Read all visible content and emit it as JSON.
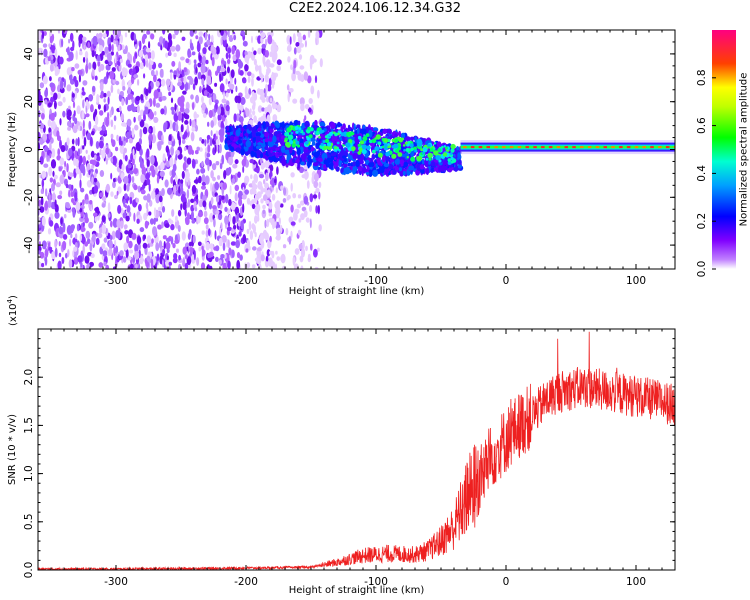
{
  "title": "C2E2.2024.106.12.34.G32",
  "chart_data": [
    {
      "type": "heatmap",
      "xlabel": "Height of straight line (km)",
      "ylabel": "Frequency (Hz)",
      "xlim": [
        -360,
        130
      ],
      "ylim": [
        -50,
        50
      ],
      "xticks": [
        -300,
        -200,
        -100,
        0,
        100
      ],
      "yticks": [
        40,
        20,
        0,
        -20,
        -40
      ],
      "colorbar": {
        "label": "Normalized spectral amplitude",
        "range": [
          0,
          1
        ],
        "ticks": [
          "0.0",
          "0.2",
          "0.4",
          "0.6",
          "0.8"
        ],
        "colors": [
          "#ffffff",
          "#b000ff",
          "#0000ff",
          "#00ffff",
          "#00ff00",
          "#ffff00",
          "#ff0000",
          "#ff0080"
        ]
      },
      "regions": [
        {
          "name": "broadband noise",
          "x": [
            -360,
            -150
          ],
          "freq_range": [
            -50,
            50
          ],
          "amplitude": 0.1
        },
        {
          "name": "dispersed signal",
          "x": [
            -215,
            -35
          ],
          "freq_start": 5,
          "freq_end": -10,
          "amplitude": 0.45
        },
        {
          "name": "carrier line",
          "x": [
            -35,
            130
          ],
          "freq": 1,
          "amplitude": 0.9
        }
      ]
    },
    {
      "type": "line",
      "xlabel": "Height of straight line (km)",
      "ylabel": "SNR (10 * v/v)",
      "yscale_label": "(x10",
      "yscale_exp": "4",
      "xlim": [
        -360,
        130
      ],
      "ylim": [
        0,
        2.5
      ],
      "xticks": [
        -300,
        -200,
        -100,
        0,
        100
      ],
      "yticks": [
        "0.0",
        "0.5",
        "1.0",
        "1.5",
        "2.0"
      ],
      "color": "#ee2020",
      "series": [
        {
          "x": [
            -360,
            -300,
            -200,
            -150,
            -130,
            -110,
            -90,
            -70,
            -60,
            -50,
            -40,
            -30,
            -20,
            -10,
            0,
            10,
            20,
            30,
            40,
            60,
            80,
            100,
            120,
            130
          ],
          "y": [
            0.01,
            0.01,
            0.02,
            0.03,
            0.08,
            0.15,
            0.17,
            0.16,
            0.2,
            0.3,
            0.45,
            0.75,
            0.95,
            1.2,
            1.35,
            1.5,
            1.6,
            1.75,
            1.85,
            1.9,
            1.85,
            1.8,
            1.75,
            1.7
          ]
        }
      ]
    }
  ]
}
